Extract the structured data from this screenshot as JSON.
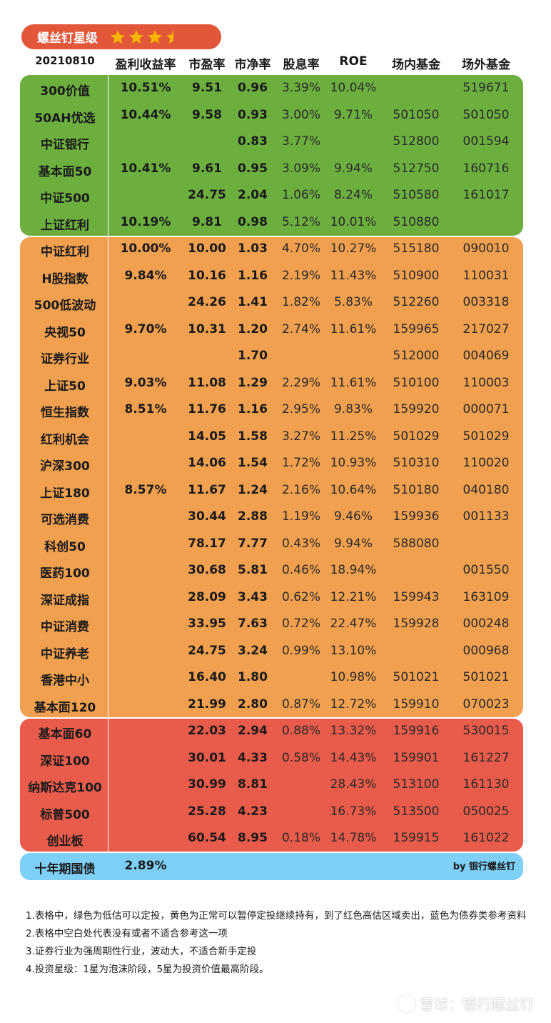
{
  "badge": {
    "title": "螺丝钉星级",
    "rating": 3.5,
    "max_stars": 5
  },
  "header": {
    "date": "20210810",
    "columns": [
      "盈利收益率",
      "市盈率",
      "市净率",
      "股息率",
      "ROE",
      "场内基金",
      "场外基金"
    ]
  },
  "colors": {
    "green": "#6caf3f",
    "orange": "#f0a04f",
    "red": "#e95b4b",
    "blue": "#7fd0f6",
    "badge": "#e2563a",
    "star": "#f6b400"
  },
  "rows": [
    {
      "zone": "green",
      "name": "300价值",
      "ey": "10.51%",
      "pe": "9.51",
      "pb": "0.96",
      "dy": "3.39%",
      "roe": "10.04%",
      "in": "",
      "out": "519671"
    },
    {
      "zone": "green",
      "name": "50AH优选",
      "ey": "10.44%",
      "pe": "9.58",
      "pb": "0.93",
      "dy": "3.00%",
      "roe": "9.71%",
      "in": "501050",
      "out": "501050"
    },
    {
      "zone": "green",
      "name": "中证银行",
      "ey": "",
      "pe": "",
      "pb": "0.83",
      "dy": "3.77%",
      "roe": "",
      "in": "512800",
      "out": "001594"
    },
    {
      "zone": "green",
      "name": "基本面50",
      "ey": "10.41%",
      "pe": "9.61",
      "pb": "0.95",
      "dy": "3.09%",
      "roe": "9.94%",
      "in": "512750",
      "out": "160716"
    },
    {
      "zone": "green",
      "name": "中证500",
      "ey": "",
      "pe": "24.75",
      "pb": "2.04",
      "dy": "1.06%",
      "roe": "8.24%",
      "in": "510580",
      "out": "161017"
    },
    {
      "zone": "green",
      "name": "上证红利",
      "ey": "10.19%",
      "pe": "9.81",
      "pb": "0.98",
      "dy": "5.12%",
      "roe": "10.01%",
      "in": "510880",
      "out": ""
    },
    {
      "zone": "orange",
      "name": "中证红利",
      "ey": "10.00%",
      "pe": "10.00",
      "pb": "1.03",
      "dy": "4.70%",
      "roe": "10.27%",
      "in": "515180",
      "out": "090010"
    },
    {
      "zone": "orange",
      "name": "H股指数",
      "ey": "9.84%",
      "pe": "10.16",
      "pb": "1.16",
      "dy": "2.19%",
      "roe": "11.43%",
      "in": "510900",
      "out": "110031"
    },
    {
      "zone": "orange",
      "name": "500低波动",
      "ey": "",
      "pe": "24.26",
      "pb": "1.41",
      "dy": "1.82%",
      "roe": "5.83%",
      "in": "512260",
      "out": "003318"
    },
    {
      "zone": "orange",
      "name": "央视50",
      "ey": "9.70%",
      "pe": "10.31",
      "pb": "1.20",
      "dy": "2.74%",
      "roe": "11.61%",
      "in": "159965",
      "out": "217027"
    },
    {
      "zone": "orange",
      "name": "证券行业",
      "ey": "",
      "pe": "",
      "pb": "1.70",
      "dy": "",
      "roe": "",
      "in": "512000",
      "out": "004069"
    },
    {
      "zone": "orange",
      "name": "上证50",
      "ey": "9.03%",
      "pe": "11.08",
      "pb": "1.29",
      "dy": "2.29%",
      "roe": "11.61%",
      "in": "510100",
      "out": "110003"
    },
    {
      "zone": "orange",
      "name": "恒生指数",
      "ey": "8.51%",
      "pe": "11.76",
      "pb": "1.16",
      "dy": "2.95%",
      "roe": "9.83%",
      "in": "159920",
      "out": "000071"
    },
    {
      "zone": "orange",
      "name": "红利机会",
      "ey": "",
      "pe": "14.05",
      "pb": "1.58",
      "dy": "3.27%",
      "roe": "11.25%",
      "in": "501029",
      "out": "501029"
    },
    {
      "zone": "orange",
      "name": "沪深300",
      "ey": "",
      "pe": "14.06",
      "pb": "1.54",
      "dy": "1.72%",
      "roe": "10.93%",
      "in": "510310",
      "out": "110020"
    },
    {
      "zone": "orange",
      "name": "上证180",
      "ey": "8.57%",
      "pe": "11.67",
      "pb": "1.24",
      "dy": "2.16%",
      "roe": "10.64%",
      "in": "510180",
      "out": "040180"
    },
    {
      "zone": "orange",
      "name": "可选消费",
      "ey": "",
      "pe": "30.44",
      "pb": "2.88",
      "dy": "1.19%",
      "roe": "9.46%",
      "in": "159936",
      "out": "001133"
    },
    {
      "zone": "orange",
      "name": "科创50",
      "ey": "",
      "pe": "78.17",
      "pb": "7.77",
      "dy": "0.43%",
      "roe": "9.94%",
      "in": "588080",
      "out": ""
    },
    {
      "zone": "orange",
      "name": "医药100",
      "ey": "",
      "pe": "30.68",
      "pb": "5.81",
      "dy": "0.46%",
      "roe": "18.94%",
      "in": "",
      "out": "001550"
    },
    {
      "zone": "orange",
      "name": "深证成指",
      "ey": "",
      "pe": "28.09",
      "pb": "3.43",
      "dy": "0.62%",
      "roe": "12.21%",
      "in": "159943",
      "out": "163109"
    },
    {
      "zone": "orange",
      "name": "中证消费",
      "ey": "",
      "pe": "33.95",
      "pb": "7.63",
      "dy": "0.72%",
      "roe": "22.47%",
      "in": "159928",
      "out": "000248"
    },
    {
      "zone": "orange",
      "name": "中证养老",
      "ey": "",
      "pe": "24.75",
      "pb": "3.24",
      "dy": "0.99%",
      "roe": "13.10%",
      "in": "",
      "out": "000968"
    },
    {
      "zone": "orange",
      "name": "香港中小",
      "ey": "",
      "pe": "16.40",
      "pb": "1.80",
      "dy": "",
      "roe": "10.98%",
      "in": "501021",
      "out": "501021"
    },
    {
      "zone": "orange",
      "name": "基本面120",
      "ey": "",
      "pe": "21.99",
      "pb": "2.80",
      "dy": "0.87%",
      "roe": "12.72%",
      "in": "159910",
      "out": "070023"
    },
    {
      "zone": "red",
      "name": "基本面60",
      "ey": "",
      "pe": "22.03",
      "pb": "2.94",
      "dy": "0.88%",
      "roe": "13.32%",
      "in": "159916",
      "out": "530015"
    },
    {
      "zone": "red",
      "name": "深证100",
      "ey": "",
      "pe": "30.01",
      "pb": "4.33",
      "dy": "0.58%",
      "roe": "14.43%",
      "in": "159901",
      "out": "161227"
    },
    {
      "zone": "red",
      "name": "纳斯达克100",
      "ey": "",
      "pe": "30.99",
      "pb": "8.81",
      "dy": "",
      "roe": "28.43%",
      "in": "513100",
      "out": "161130"
    },
    {
      "zone": "red",
      "name": "标普500",
      "ey": "",
      "pe": "25.28",
      "pb": "4.23",
      "dy": "",
      "roe": "16.73%",
      "in": "513500",
      "out": "050025"
    },
    {
      "zone": "red",
      "name": "创业板",
      "ey": "",
      "pe": "60.54",
      "pb": "8.95",
      "dy": "0.18%",
      "roe": "14.78%",
      "in": "159915",
      "out": "161022"
    }
  ],
  "bond": {
    "name": "十年期国债",
    "ey": "2.89%",
    "credit": "by 银行螺丝钉"
  },
  "notes": [
    "1.表格中，绿色为低估可以定投，黄色为正常可以暂停定投继续持有，到了红色高估区域卖出，蓝色为债券类参考资料",
    "2.表格中空白处代表没有或者不适合参考这一项",
    "3.证券行业为强周期性行业，波动大，不适合新手定投",
    "4.投资星级：1星为泡沫阶段，5星为投资价值最高阶段。"
  ],
  "watermark": "雪球：银行螺丝钉"
}
